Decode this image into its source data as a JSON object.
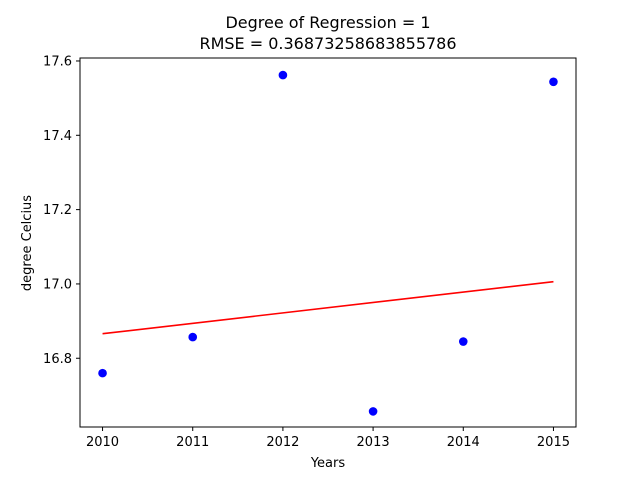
{
  "chart_data": {
    "type": "scatter",
    "title": "Degree of Regression = 1",
    "subtitle": "RMSE = 0.36873258683855786",
    "xlabel": "Years",
    "ylabel": "degree Celcius",
    "xlim": [
      2009.75,
      2015.25
    ],
    "ylim": [
      16.615,
      17.608
    ],
    "xticks": [
      2010,
      2011,
      2012,
      2013,
      2014,
      2015
    ],
    "xtick_labels": [
      "2010",
      "2011",
      "2012",
      "2013",
      "2014",
      "2015"
    ],
    "yticks": [
      16.8,
      17.0,
      17.2,
      17.4,
      17.6
    ],
    "ytick_labels": [
      "16.8",
      "17.0",
      "17.2",
      "17.4",
      "17.6"
    ],
    "grid": false,
    "series": [
      {
        "kind": "scatter",
        "color": "#0000ff",
        "x": [
          2010,
          2011,
          2012,
          2013,
          2014,
          2015
        ],
        "y": [
          16.76,
          16.857,
          17.562,
          16.657,
          16.845,
          17.544
        ]
      },
      {
        "kind": "line",
        "color": "#ff0000",
        "x": [
          2010,
          2015
        ],
        "y": [
          16.866,
          17.006
        ]
      }
    ]
  }
}
